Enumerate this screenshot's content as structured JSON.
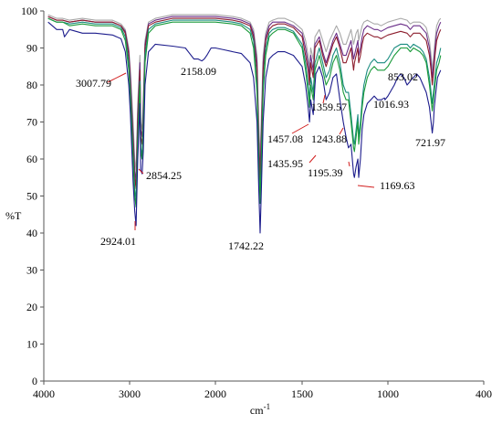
{
  "chart_data": {
    "type": "line",
    "title": "",
    "xlabel": "cm-1",
    "ylabel": "%T",
    "xlim": [
      4000,
      400
    ],
    "ylim": [
      0,
      100
    ],
    "x_ticks": [
      4000,
      3000,
      2000,
      1500,
      1000,
      400
    ],
    "x_tick_labels": [
      "4000",
      "3000",
      "2000",
      "1500",
      "1000",
      "400"
    ],
    "y_ticks": [
      0,
      10,
      20,
      30,
      40,
      50,
      60,
      70,
      80,
      90,
      100
    ],
    "y_tick_labels": [
      "0",
      "10",
      "20",
      "30",
      "40",
      "50",
      "60",
      "70",
      "80",
      "90",
      "100"
    ],
    "grid": false,
    "legend": "none",
    "series": [
      {
        "color": "#1c1c8c",
        "x": [
          3950,
          3850,
          3780,
          3760,
          3700,
          3550,
          3400,
          3200,
          3100,
          3050,
          3010,
          2990,
          2960,
          2940,
          2924,
          2905,
          2880,
          2870,
          2854,
          2840,
          2820,
          2780,
          2700,
          2500,
          2350,
          2300,
          2250,
          2200,
          2158,
          2130,
          2100,
          2050,
          2000,
          1950,
          1900,
          1850,
          1800,
          1780,
          1760,
          1750,
          1742,
          1735,
          1725,
          1710,
          1690,
          1670,
          1640,
          1600,
          1550,
          1500,
          1480,
          1465,
          1457,
          1450,
          1435,
          1425,
          1420,
          1400,
          1380,
          1360,
          1340,
          1320,
          1300,
          1280,
          1260,
          1244,
          1230,
          1215,
          1200,
          1195,
          1185,
          1175,
          1170,
          1160,
          1150,
          1140,
          1120,
          1100,
          1080,
          1060,
          1040,
          1020,
          1017,
          1000,
          960,
          940,
          920,
          900,
          880,
          860,
          853,
          840,
          820,
          800,
          780,
          760,
          740,
          730,
          722,
          715,
          710,
          700,
          690,
          670
        ],
        "y": [
          97,
          95,
          95,
          93,
          95,
          94,
          94,
          93.5,
          92.5,
          89,
          80,
          72,
          54,
          46,
          42,
          60,
          75,
          57,
          56,
          62,
          80,
          89,
          91,
          90.5,
          90,
          88.5,
          87,
          87,
          86.5,
          87,
          88,
          90,
          90,
          89.5,
          89,
          88.5,
          86,
          82,
          70,
          52,
          40,
          52,
          70,
          82,
          87,
          88,
          89,
          89,
          88,
          85,
          80,
          74,
          70,
          76,
          72,
          80,
          83,
          85,
          82,
          76,
          78,
          82,
          83,
          76,
          70,
          66,
          63,
          64,
          56,
          55,
          58,
          60,
          55,
          60,
          68,
          72,
          75,
          76,
          77,
          76,
          76,
          76.5,
          76,
          77,
          80,
          82,
          83,
          82,
          80,
          81,
          81.5,
          82,
          83,
          82,
          80,
          78,
          74,
          70,
          67,
          70,
          74,
          78,
          82,
          84
        ]
      },
      {
        "color": "#1a9a3a",
        "x": [
          3950,
          3850,
          3780,
          3700,
          3550,
          3400,
          3200,
          3100,
          3050,
          3010,
          2990,
          2960,
          2940,
          2924,
          2905,
          2880,
          2870,
          2854,
          2840,
          2820,
          2780,
          2700,
          2500,
          2300,
          2200,
          2100,
          2000,
          1900,
          1850,
          1800,
          1780,
          1760,
          1750,
          1742,
          1735,
          1725,
          1710,
          1690,
          1670,
          1640,
          1600,
          1550,
          1500,
          1480,
          1465,
          1457,
          1450,
          1435,
          1425,
          1400,
          1380,
          1360,
          1340,
          1320,
          1300,
          1280,
          1260,
          1244,
          1230,
          1215,
          1200,
          1195,
          1185,
          1175,
          1170,
          1160,
          1150,
          1140,
          1120,
          1100,
          1080,
          1060,
          1040,
          1020,
          1000,
          960,
          920,
          880,
          860,
          840,
          800,
          780,
          760,
          740,
          730,
          722,
          715,
          705,
          695,
          680,
          670
        ],
        "y": [
          98,
          97,
          97,
          96,
          96.5,
          96,
          96,
          95,
          92,
          84,
          76,
          60,
          50,
          47,
          65,
          80,
          62,
          60,
          68,
          86,
          94,
          96,
          97,
          97,
          97,
          97,
          97,
          96.5,
          96,
          94,
          90,
          78,
          58,
          48,
          60,
          78,
          88,
          93,
          94,
          95,
          95,
          94,
          90,
          84,
          78,
          74,
          80,
          76,
          84,
          88,
          84,
          80,
          82,
          86,
          88,
          84,
          78,
          76,
          76,
          70,
          63,
          62,
          66,
          70,
          64,
          68,
          74,
          78,
          82,
          84,
          85,
          84,
          84,
          84,
          85,
          88,
          90,
          90,
          89,
          90,
          89,
          88,
          86,
          80,
          76,
          73,
          76,
          80,
          84,
          86,
          88
        ]
      },
      {
        "color": "#1a8c80",
        "x": [
          3950,
          3850,
          3780,
          3700,
          3550,
          3400,
          3200,
          3100,
          3050,
          3010,
          2990,
          2960,
          2940,
          2924,
          2905,
          2880,
          2870,
          2854,
          2840,
          2820,
          2780,
          2700,
          2500,
          2300,
          2200,
          2100,
          2000,
          1900,
          1850,
          1800,
          1780,
          1760,
          1750,
          1742,
          1735,
          1725,
          1710,
          1690,
          1670,
          1640,
          1600,
          1550,
          1500,
          1480,
          1465,
          1457,
          1450,
          1435,
          1425,
          1400,
          1380,
          1360,
          1340,
          1320,
          1300,
          1280,
          1260,
          1244,
          1230,
          1215,
          1200,
          1195,
          1185,
          1175,
          1170,
          1160,
          1150,
          1140,
          1120,
          1100,
          1080,
          1060,
          1040,
          1020,
          1000,
          960,
          920,
          880,
          860,
          840,
          800,
          780,
          760,
          740,
          730,
          722,
          715,
          705,
          695,
          680,
          670
        ],
        "y": [
          98,
          97,
          97,
          96.5,
          97,
          96.5,
          96.5,
          95.5,
          93,
          86,
          78,
          62,
          52,
          49,
          66,
          81,
          63,
          61,
          70,
          88,
          95,
          96.5,
          97.5,
          97.5,
          97.5,
          97.5,
          97.5,
          97,
          96.5,
          95,
          92,
          80,
          60,
          50,
          62,
          80,
          90,
          94,
          95,
          95.5,
          95.5,
          94.5,
          91,
          86,
          80,
          76,
          82,
          78,
          86,
          90,
          86,
          82,
          84,
          88,
          90,
          86,
          80,
          78,
          78,
          72,
          65,
          64,
          68,
          72,
          66,
          70,
          76,
          80,
          84,
          86,
          87,
          86,
          86,
          86,
          87,
          90,
          91,
          91,
          90,
          91,
          90,
          89,
          87,
          82,
          78,
          75,
          78,
          82,
          86,
          88,
          90
        ]
      },
      {
        "color": "#8c1c2c",
        "x": [
          3950,
          3850,
          3780,
          3700,
          3550,
          3400,
          3200,
          3100,
          3050,
          3010,
          2990,
          2960,
          2940,
          2924,
          2905,
          2880,
          2870,
          2854,
          2840,
          2820,
          2780,
          2700,
          2500,
          2300,
          2200,
          2100,
          2000,
          1900,
          1850,
          1800,
          1780,
          1760,
          1750,
          1742,
          1735,
          1725,
          1710,
          1690,
          1670,
          1640,
          1600,
          1550,
          1500,
          1480,
          1465,
          1457,
          1450,
          1435,
          1425,
          1400,
          1380,
          1360,
          1340,
          1320,
          1300,
          1280,
          1260,
          1244,
          1230,
          1215,
          1200,
          1195,
          1185,
          1175,
          1170,
          1160,
          1150,
          1140,
          1120,
          1100,
          1080,
          1060,
          1040,
          1020,
          1000,
          960,
          920,
          880,
          860,
          840,
          800,
          780,
          760,
          740,
          730,
          722,
          715,
          705,
          695,
          680,
          670
        ],
        "y": [
          98.5,
          97.5,
          97.5,
          97,
          97.5,
          97,
          97,
          96,
          94,
          88,
          80,
          65,
          55,
          52,
          70,
          84,
          66,
          64,
          72,
          90,
          96,
          97,
          98,
          98,
          98,
          98,
          98,
          97.5,
          97,
          96,
          93,
          84,
          64,
          54,
          66,
          84,
          92,
          95,
          96,
          96.5,
          96.5,
          95.5,
          93,
          88,
          84,
          80,
          86,
          82,
          90,
          92,
          88,
          85,
          88,
          91,
          93,
          90,
          86,
          86,
          88,
          90,
          84,
          86,
          88,
          90,
          86,
          88,
          91,
          93,
          94,
          93.5,
          93,
          93,
          92.5,
          93,
          93.5,
          94,
          94.5,
          94,
          93,
          94,
          94,
          93,
          92,
          88,
          84,
          80,
          83,
          88,
          92,
          94,
          95
        ]
      },
      {
        "color": "#6a2e88",
        "x": [
          3950,
          3850,
          3780,
          3700,
          3550,
          3400,
          3200,
          3100,
          3050,
          3010,
          2990,
          2960,
          2940,
          2924,
          2905,
          2880,
          2870,
          2854,
          2840,
          2820,
          2780,
          2700,
          2500,
          2300,
          2200,
          2100,
          2000,
          1900,
          1850,
          1800,
          1780,
          1760,
          1750,
          1742,
          1735,
          1725,
          1710,
          1690,
          1670,
          1640,
          1600,
          1550,
          1500,
          1480,
          1465,
          1457,
          1450,
          1435,
          1425,
          1400,
          1380,
          1360,
          1340,
          1320,
          1300,
          1280,
          1260,
          1244,
          1230,
          1215,
          1200,
          1195,
          1185,
          1175,
          1170,
          1160,
          1150,
          1140,
          1120,
          1100,
          1080,
          1060,
          1040,
          1020,
          1000,
          960,
          920,
          880,
          860,
          840,
          800,
          780,
          760,
          740,
          730,
          722,
          715,
          705,
          695,
          680,
          670
        ],
        "y": [
          98.5,
          97.5,
          97.5,
          97,
          97.5,
          97,
          97,
          96,
          94.5,
          89,
          82,
          67,
          57,
          54,
          72,
          86,
          68,
          66,
          74,
          91,
          96.5,
          97.5,
          98.5,
          98.5,
          98.5,
          98.5,
          98.5,
          98,
          97.5,
          96.5,
          94,
          86,
          66,
          56,
          68,
          86,
          93,
          96,
          97,
          97,
          97,
          96,
          94,
          90,
          86,
          82,
          88,
          84,
          91,
          93,
          89,
          86,
          89,
          92,
          94,
          91,
          88,
          88,
          90,
          92,
          87,
          88,
          90,
          92,
          88,
          90,
          93,
          95,
          96,
          95.5,
          95,
          95,
          94.5,
          95,
          95.5,
          96,
          96.5,
          96,
          95,
          96,
          96,
          95,
          94,
          90,
          86,
          82,
          85,
          90,
          94,
          96,
          97
        ]
      },
      {
        "color": "#a8a8a8",
        "x": [
          3950,
          3850,
          3780,
          3700,
          3550,
          3400,
          3200,
          3100,
          3050,
          3010,
          2990,
          2960,
          2940,
          2924,
          2905,
          2880,
          2870,
          2854,
          2840,
          2820,
          2780,
          2700,
          2500,
          2300,
          2200,
          2100,
          2000,
          1900,
          1850,
          1800,
          1780,
          1760,
          1750,
          1742,
          1735,
          1725,
          1710,
          1690,
          1670,
          1640,
          1600,
          1550,
          1500,
          1480,
          1465,
          1457,
          1450,
          1435,
          1425,
          1400,
          1380,
          1360,
          1340,
          1320,
          1300,
          1280,
          1260,
          1244,
          1230,
          1215,
          1200,
          1195,
          1185,
          1175,
          1170,
          1160,
          1150,
          1140,
          1120,
          1100,
          1080,
          1060,
          1040,
          1020,
          1000,
          960,
          920,
          880,
          860,
          840,
          800,
          780,
          760,
          740,
          730,
          722,
          715,
          705,
          695,
          680,
          670
        ],
        "y": [
          99,
          98,
          98,
          97.5,
          98,
          97.5,
          97.5,
          96.5,
          95,
          90,
          84,
          70,
          60,
          57,
          75,
          88,
          70,
          68,
          76,
          92,
          97,
          98,
          99,
          99,
          99,
          99,
          99,
          98.5,
          98,
          97,
          95,
          88,
          70,
          60,
          72,
          88,
          94,
          97,
          97.5,
          98,
          98,
          97,
          95,
          92,
          88,
          84,
          90,
          87,
          93,
          95,
          92,
          89,
          92,
          94,
          96,
          94,
          91,
          91,
          93,
          95,
          91,
          92,
          94,
          95,
          92,
          94,
          96,
          97,
          97.5,
          97,
          96.5,
          96.5,
          96,
          96.5,
          97,
          97.5,
          98,
          97.5,
          96.5,
          97,
          97,
          96.5,
          95.5,
          92,
          88,
          84,
          87,
          92,
          96,
          97.5,
          98
        ]
      }
    ],
    "annotations": [
      {
        "label": "3007.79",
        "x": 3007.79,
        "y": 80
      },
      {
        "label": "2854.25",
        "x": 2854.25,
        "y": 56
      },
      {
        "label": "2924.01",
        "x": 2924.01,
        "y": 42
      },
      {
        "label": "2158.09",
        "x": 2158.09,
        "y": 86.5
      },
      {
        "label": "1742.22",
        "x": 1742.22,
        "y": 40
      },
      {
        "label": "1457.08",
        "x": 1457.08,
        "y": 70
      },
      {
        "label": "1435.95",
        "x": 1435.95,
        "y": 72
      },
      {
        "label": "1359.57",
        "x": 1359.57,
        "y": 76
      },
      {
        "label": "1243.88",
        "x": 1243.88,
        "y": 66
      },
      {
        "label": "1195.39",
        "x": 1195.39,
        "y": 56
      },
      {
        "label": "1169.63",
        "x": 1169.63,
        "y": 55
      },
      {
        "label": "1016.93",
        "x": 1016.93,
        "y": 76
      },
      {
        "label": "853.02",
        "x": 853.02,
        "y": 81.5
      },
      {
        "label": "721.97",
        "x": 721.97,
        "y": 67
      }
    ]
  }
}
